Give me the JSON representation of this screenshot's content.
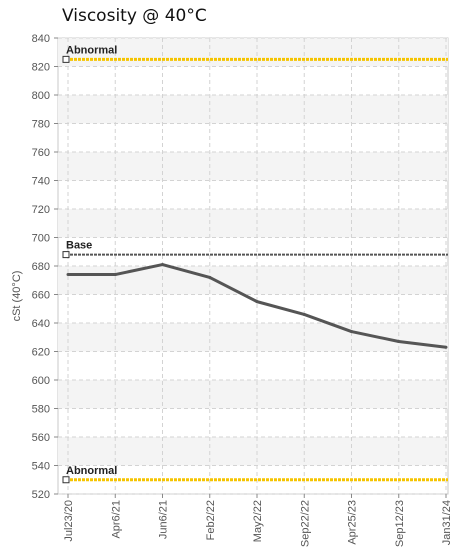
{
  "chart_data": {
    "type": "line",
    "title": "Viscosity @ 40°C",
    "ylabel": "cSt (40°C)",
    "xlabel": "",
    "ylim": [
      520,
      840
    ],
    "yticks": [
      520,
      540,
      560,
      580,
      600,
      620,
      640,
      660,
      680,
      700,
      720,
      740,
      760,
      780,
      800,
      820,
      840
    ],
    "categories": [
      "Jul23/20",
      "Apr6/21",
      "Jun6/21",
      "Feb2/22",
      "May2/22",
      "Sep22/22",
      "Apr25/23",
      "Sep12/23",
      "Jan31/24"
    ],
    "grid": true,
    "series": [
      {
        "values": [
          674,
          674,
          681,
          672,
          655,
          646,
          634,
          627,
          623
        ],
        "color": "#555555"
      }
    ],
    "reference_lines": [
      {
        "label": "Abnormal",
        "value": 825,
        "color": "#f5c400",
        "style": "dotted"
      },
      {
        "label": "Base",
        "value": 688,
        "color": "#555555",
        "style": "dotted"
      },
      {
        "label": "Abnormal",
        "value": 530,
        "color": "#f5c400",
        "style": "dotted"
      }
    ]
  }
}
